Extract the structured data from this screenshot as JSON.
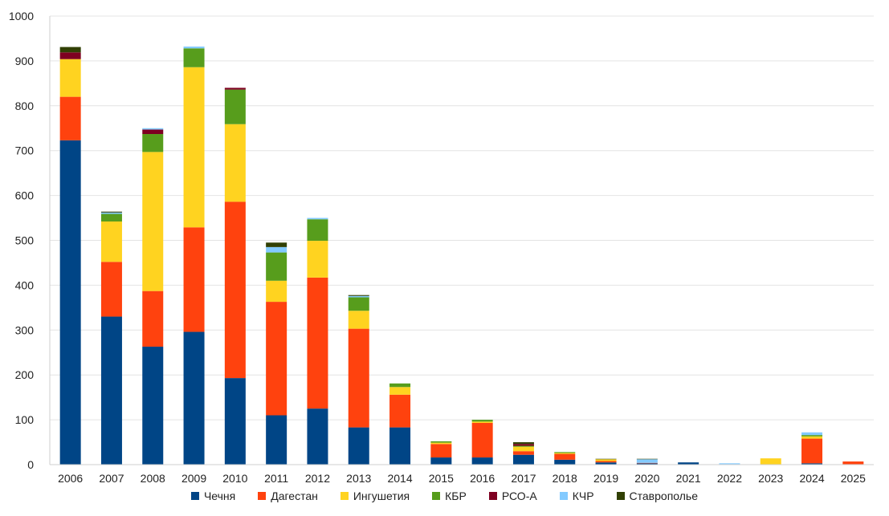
{
  "chart_data": {
    "type": "stacked-bar",
    "title": "",
    "xlabel": "",
    "ylabel": "",
    "ylim": [
      0,
      1000
    ],
    "yticks": [
      0,
      100,
      200,
      300,
      400,
      500,
      600,
      700,
      800,
      900,
      1000
    ],
    "grid": true,
    "legend_position": "bottom",
    "categories": [
      "2006",
      "2007",
      "2008",
      "2009",
      "2010",
      "2011",
      "2012",
      "2013",
      "2014",
      "2015",
      "2016",
      "2017",
      "2018",
      "2019",
      "2020",
      "2021",
      "2022",
      "2023",
      "2024",
      "2025"
    ],
    "series": [
      {
        "name": "Чечня",
        "color": "#004586",
        "values": [
          723,
          330,
          263,
          296,
          193,
          110,
          125,
          83,
          83,
          16,
          16,
          22,
          11,
          5,
          3,
          5,
          1,
          0,
          3,
          1
        ]
      },
      {
        "name": "Дагестан",
        "color": "#ff420e",
        "values": [
          97,
          122,
          124,
          233,
          393,
          253,
          292,
          220,
          73,
          30,
          77,
          8,
          13,
          3,
          1,
          0,
          0,
          0,
          55,
          6
        ]
      },
      {
        "name": "Ингушетия",
        "color": "#ffd320",
        "values": [
          84,
          90,
          310,
          357,
          173,
          47,
          82,
          40,
          17,
          3,
          3,
          10,
          2,
          4,
          0,
          0,
          0,
          14,
          5,
          0
        ]
      },
      {
        "name": "КБР",
        "color": "#579d1c",
        "values": [
          0,
          17,
          40,
          42,
          77,
          63,
          48,
          30,
          8,
          3,
          4,
          2,
          2,
          0,
          0,
          0,
          0,
          0,
          3,
          0
        ]
      },
      {
        "name": "РСО-А",
        "color": "#7e0021",
        "values": [
          15,
          0,
          10,
          0,
          4,
          0,
          0,
          0,
          0,
          0,
          0,
          4,
          0,
          0,
          0,
          0,
          0,
          0,
          0,
          0
        ]
      },
      {
        "name": "КЧР",
        "color": "#83caff",
        "values": [
          0,
          3,
          3,
          4,
          0,
          12,
          3,
          3,
          0,
          0,
          0,
          0,
          0,
          0,
          8,
          0,
          2,
          0,
          6,
          0
        ]
      },
      {
        "name": "Ставрополье",
        "color": "#314004",
        "values": [
          12,
          2,
          0,
          0,
          0,
          10,
          0,
          2,
          0,
          0,
          0,
          4,
          0,
          1,
          1,
          0,
          0,
          0,
          0,
          0
        ]
      }
    ]
  }
}
